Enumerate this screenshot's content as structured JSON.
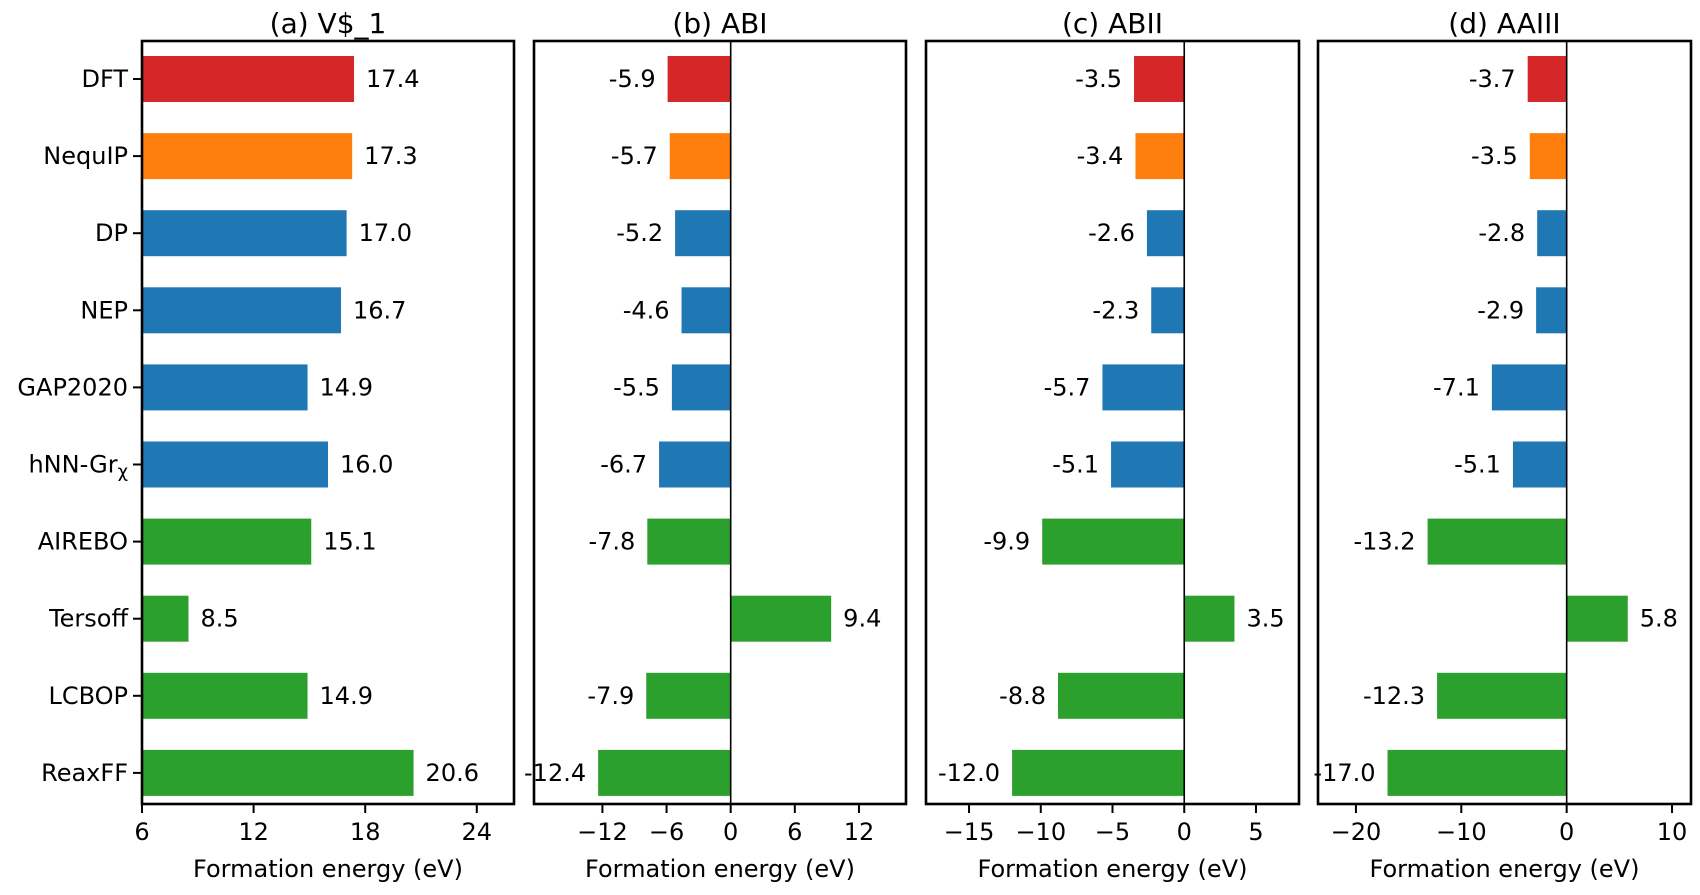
{
  "categories": [
    "DFT",
    "NequIP",
    "DP",
    "NEP",
    "GAP2020",
    "hNN-Grχ",
    "AIREBO",
    "Tersoff",
    "LCBOP",
    "ReaxFF"
  ],
  "category_display": [
    {
      "main": "DFT",
      "sub": ""
    },
    {
      "main": "NequIP",
      "sub": ""
    },
    {
      "main": "DP",
      "sub": ""
    },
    {
      "main": "NEP",
      "sub": ""
    },
    {
      "main": "GAP2020",
      "sub": ""
    },
    {
      "main": "hNN-Gr",
      "sub": "χ"
    },
    {
      "main": "AIREBO",
      "sub": ""
    },
    {
      "main": "Tersoff",
      "sub": ""
    },
    {
      "main": "LCBOP",
      "sub": ""
    },
    {
      "main": "ReaxFF",
      "sub": ""
    }
  ],
  "bar_colors": [
    "#d62728",
    "#ff7f0e",
    "#1f77b4",
    "#1f77b4",
    "#1f77b4",
    "#1f77b4",
    "#2ca02c",
    "#2ca02c",
    "#2ca02c",
    "#2ca02c"
  ],
  "chart_data": [
    {
      "type": "bar",
      "orientation": "horizontal",
      "title": "(a) V$_1",
      "xlabel": "Formation energy (eV)",
      "xlim": [
        6,
        26
      ],
      "xticks": [
        6,
        12,
        18,
        24
      ],
      "xtick_labels": [
        "6",
        "12",
        "18",
        "24"
      ],
      "values": [
        17.4,
        17.3,
        17.0,
        16.7,
        14.9,
        16.0,
        15.1,
        8.5,
        14.9,
        20.6
      ],
      "labels": [
        "17.4",
        "17.3",
        "17.0",
        "16.7",
        "14.9",
        "16.0",
        "15.1",
        "8.5",
        "14.9",
        "20.6"
      ],
      "baseline": 6,
      "zero_line": false,
      "show_category_labels": true
    },
    {
      "type": "bar",
      "orientation": "horizontal",
      "title": "(b) ABI",
      "xlabel": "Formation energy (eV)",
      "xlim": [
        -18.4,
        16.4
      ],
      "xticks": [
        -12,
        -6,
        0,
        6,
        12
      ],
      "xtick_labels": [
        "−12",
        "−6",
        "0",
        "6",
        "12"
      ],
      "values": [
        -5.9,
        -5.7,
        -5.2,
        -4.6,
        -5.5,
        -6.7,
        -7.8,
        9.4,
        -7.9,
        -12.4
      ],
      "labels": [
        "-5.9",
        "-5.7",
        "-5.2",
        "-4.6",
        "-5.5",
        "-6.7",
        "-7.8",
        "9.4",
        "-7.9",
        "-12.4"
      ],
      "baseline": 0,
      "zero_line": true,
      "show_category_labels": false
    },
    {
      "type": "bar",
      "orientation": "horizontal",
      "title": "(c) ABII",
      "xlabel": "Formation energy (eV)",
      "xlim": [
        -18.0,
        8.0
      ],
      "xticks": [
        -15,
        -10,
        -5,
        0,
        5
      ],
      "xtick_labels": [
        "−15",
        "−10",
        "−5",
        "0",
        "5"
      ],
      "values": [
        -3.5,
        -3.4,
        -2.6,
        -2.3,
        -5.7,
        -5.1,
        -9.9,
        3.5,
        -8.8,
        -12.0
      ],
      "labels": [
        "-3.5",
        "-3.4",
        "-2.6",
        "-2.3",
        "-5.7",
        "-5.1",
        "-9.9",
        "3.5",
        "-8.8",
        "-12.0"
      ],
      "baseline": 0,
      "zero_line": true,
      "show_category_labels": false
    },
    {
      "type": "bar",
      "orientation": "horizontal",
      "title": "(d) AAIII",
      "xlabel": "Formation energy (eV)",
      "xlim": [
        -23.6,
        11.8
      ],
      "xticks": [
        -20,
        -10,
        0,
        10
      ],
      "xtick_labels": [
        "−20",
        "−10",
        "0",
        "10"
      ],
      "values": [
        -3.7,
        -3.5,
        -2.8,
        -2.9,
        -7.1,
        -5.1,
        -13.2,
        5.8,
        -12.3,
        -17.0
      ],
      "labels": [
        "-3.7",
        "-3.5",
        "-2.8",
        "-2.9",
        "-7.1",
        "-5.1",
        "-13.2",
        "5.8",
        "-12.3",
        "-17.0"
      ],
      "baseline": 0,
      "zero_line": true,
      "show_category_labels": false
    }
  ]
}
